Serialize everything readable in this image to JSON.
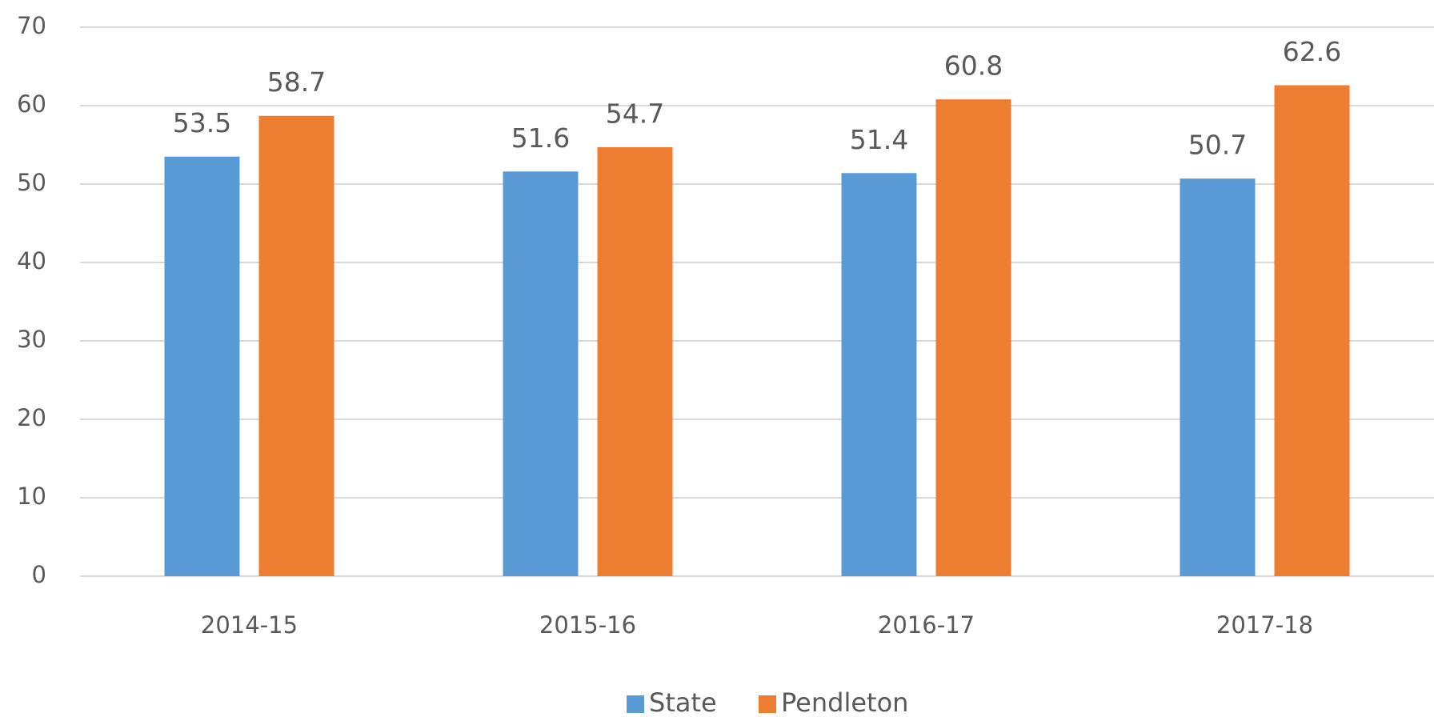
{
  "chart_data": {
    "type": "bar",
    "categories": [
      "2014-15",
      "2015-16",
      "2016-17",
      "2017-18"
    ],
    "series": [
      {
        "name": "State",
        "color": "#5b9bd5",
        "values": [
          53.5,
          51.6,
          51.4,
          50.7
        ]
      },
      {
        "name": "Pendleton",
        "color": "#ed7d31",
        "values": [
          58.7,
          54.7,
          60.8,
          62.6
        ]
      }
    ],
    "ylim": [
      0,
      70
    ],
    "yticks": [
      0,
      10,
      20,
      30,
      40,
      50,
      60,
      70
    ],
    "grid": true,
    "legend": "bottom"
  }
}
